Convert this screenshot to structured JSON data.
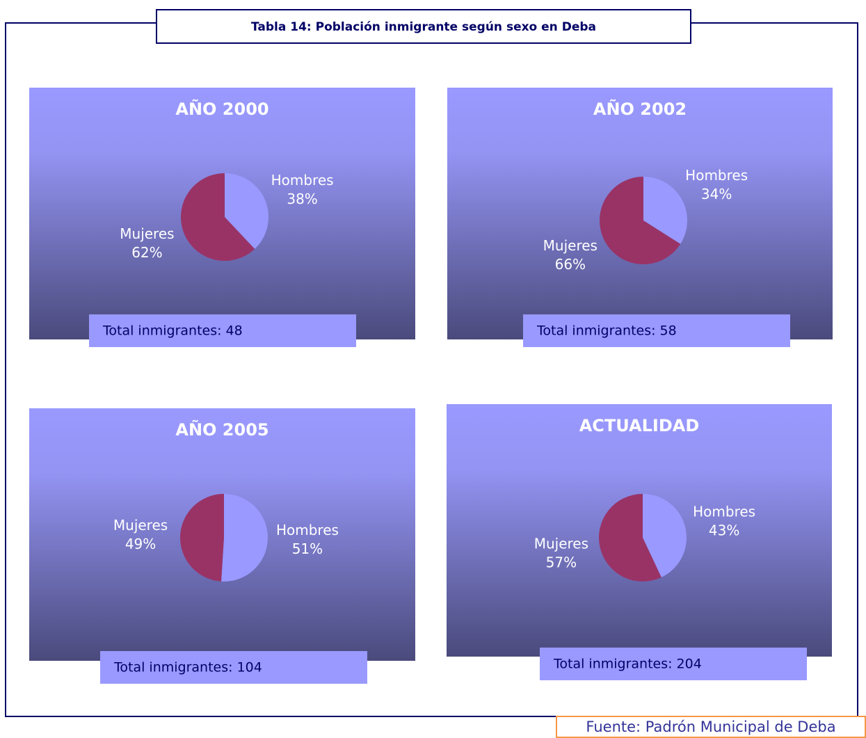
{
  "title": "Tabla 14: Población inmigrante según sexo en Deba",
  "source": "Fuente: Padrón Municipal de Deba",
  "chart_data": [
    {
      "type": "pie",
      "title": "AÑO 2000",
      "categories": [
        "Hombres",
        "Mujeres"
      ],
      "values": [
        38,
        62
      ],
      "value_labels": [
        "38%",
        "62%"
      ],
      "colors": [
        "#9999ff",
        "#993366"
      ],
      "annotation": "Total inmigrantes: 48"
    },
    {
      "type": "pie",
      "title": "AÑO 2002",
      "categories": [
        "Hombres",
        "Mujeres"
      ],
      "values": [
        34,
        66
      ],
      "value_labels": [
        "34%",
        "66%"
      ],
      "colors": [
        "#9999ff",
        "#993366"
      ],
      "annotation": "Total inmigrantes: 58"
    },
    {
      "type": "pie",
      "title": "AÑO 2005",
      "categories": [
        "Hombres",
        "Mujeres"
      ],
      "values": [
        51,
        49
      ],
      "value_labels": [
        "51%",
        "49%"
      ],
      "colors": [
        "#9999ff",
        "#993366"
      ],
      "annotation": "Total inmigrantes: 104"
    },
    {
      "type": "pie",
      "title": "ACTUALIDAD",
      "categories": [
        "Hombres",
        "Mujeres"
      ],
      "values": [
        43,
        57
      ],
      "value_labels": [
        "43%",
        "57%"
      ],
      "colors": [
        "#9999ff",
        "#993366"
      ],
      "annotation": "Total inmigrantes: 204"
    }
  ]
}
